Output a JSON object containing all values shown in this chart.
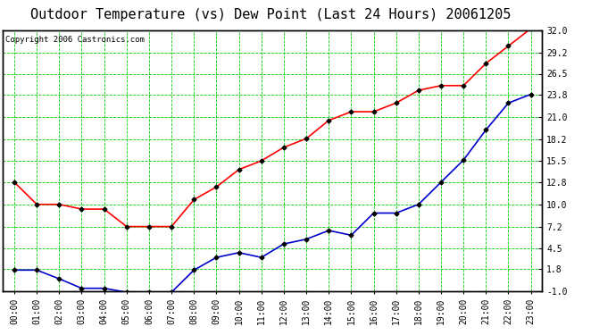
{
  "title": "Outdoor Temperature (vs) Dew Point (Last 24 Hours) 20061205",
  "copyright": "Copyright 2006 Castronics.com",
  "hours": [
    "00:00",
    "01:00",
    "02:00",
    "03:00",
    "04:00",
    "05:00",
    "06:00",
    "07:00",
    "08:00",
    "09:00",
    "10:00",
    "11:00",
    "12:00",
    "13:00",
    "14:00",
    "15:00",
    "16:00",
    "17:00",
    "18:00",
    "19:00",
    "20:00",
    "21:00",
    "22:00",
    "23:00"
  ],
  "temp": [
    12.8,
    10.0,
    10.0,
    9.4,
    9.4,
    7.2,
    7.2,
    7.2,
    10.6,
    12.2,
    14.4,
    15.5,
    17.2,
    18.3,
    20.6,
    21.7,
    21.7,
    22.8,
    24.4,
    25.0,
    25.0,
    27.8,
    30.0,
    32.2
  ],
  "dew": [
    1.7,
    1.7,
    0.6,
    -0.6,
    -0.6,
    -1.1,
    -1.1,
    -1.1,
    1.7,
    3.3,
    3.9,
    3.3,
    5.0,
    5.6,
    6.7,
    6.1,
    8.9,
    8.9,
    10.0,
    12.8,
    15.6,
    19.4,
    22.8,
    23.9
  ],
  "yticks": [
    32.0,
    29.2,
    26.5,
    23.8,
    21.0,
    18.2,
    15.5,
    12.8,
    10.0,
    7.2,
    4.5,
    1.8,
    -1.0
  ],
  "ymin": -1.0,
  "ymax": 32.0,
  "temp_color": "#ff0000",
  "dew_color": "#0000cc",
  "bg_color": "#ffffff",
  "plot_bg_color": "#ffffff",
  "grid_color": "#00cc00",
  "marker": "D",
  "marker_size": 2.5,
  "line_width": 1.2,
  "title_fontsize": 11,
  "copyright_fontsize": 6.5,
  "tick_fontsize": 7
}
